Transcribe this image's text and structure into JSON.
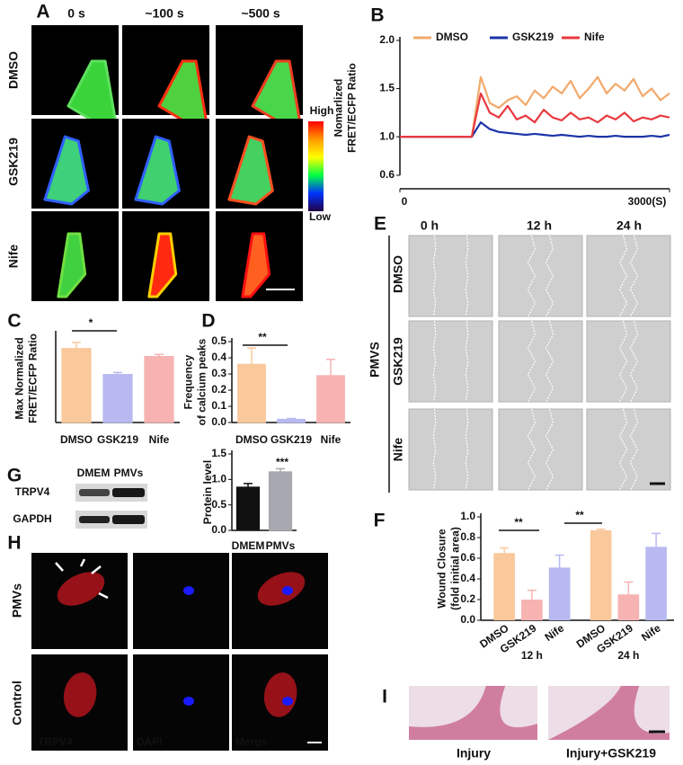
{
  "panels": {
    "A": {
      "letter": "A",
      "columns": [
        "0 s",
        "~100 s",
        "~500 s"
      ],
      "rows": [
        "DMSO",
        "GSK219",
        "Nife"
      ],
      "colorbar_high": "High",
      "colorbar_low": "Low"
    },
    "E": {
      "letter": "E",
      "columns": [
        "0 h",
        "12 h",
        "24 h"
      ],
      "rows": [
        "DMSO",
        "GSK219",
        "Nife"
      ],
      "group": "PMVS"
    },
    "G": {
      "letter": "G",
      "lanes": [
        "DMEM",
        "PMVs"
      ],
      "blots": [
        "TRPV4",
        "GAPDH"
      ]
    },
    "H": {
      "letter": "H",
      "rows": [
        "PMVs",
        "Control"
      ],
      "channels": [
        "TRPV4",
        "DAPI",
        "Merge"
      ]
    },
    "I": {
      "letter": "I",
      "captions": [
        "Injury",
        "Injury+GSK219"
      ]
    }
  },
  "chart_data": [
    {
      "type": "line",
      "label": "B",
      "ylabel": [
        "Nomarlized",
        "FRET/ECFP Ratio"
      ],
      "x": [
        0,
        100,
        200,
        300,
        400,
        500,
        600,
        700,
        800,
        900,
        1000,
        1100,
        1200,
        1300,
        1400,
        1500,
        1600,
        1700,
        1800,
        1900,
        2000,
        2100,
        2200,
        2300,
        2400,
        2500,
        2600,
        2700,
        2800,
        2900,
        3000
      ],
      "xlim": [
        0,
        3000
      ],
      "xticks": [
        0,
        {
          "value": 3000,
          "label": "3000(S)"
        }
      ],
      "ylim": [
        0.6,
        2.0
      ],
      "yticks": [
        0.6,
        {
          "value": 1.0,
          "label": "1.0"
        },
        1.5,
        {
          "value": 2.0,
          "label": "2.0"
        }
      ],
      "series": [
        {
          "name": "DMSO",
          "color": "#f2a96b",
          "values": [
            1,
            1,
            1,
            1,
            1,
            1,
            1,
            1,
            1,
            1.62,
            1.35,
            1.3,
            1.38,
            1.42,
            1.33,
            1.48,
            1.4,
            1.52,
            1.45,
            1.58,
            1.4,
            1.5,
            1.62,
            1.45,
            1.55,
            1.48,
            1.6,
            1.42,
            1.5,
            1.38,
            1.45
          ]
        },
        {
          "name": "GSK219",
          "color": "#1c34a8",
          "values": [
            1,
            1,
            1,
            1,
            1,
            1,
            1,
            1,
            1,
            1.15,
            1.08,
            1.05,
            1.04,
            1.03,
            1.02,
            1.03,
            1.02,
            1.01,
            1.02,
            1.01,
            1.0,
            1.01,
            1.0,
            1.0,
            1.01,
            1.0,
            1.0,
            1.0,
            1.01,
            1.0,
            1.02
          ]
        },
        {
          "name": "Nife",
          "color": "#e8393f",
          "values": [
            1,
            1,
            1,
            1,
            1,
            1,
            1,
            1,
            1,
            1.45,
            1.25,
            1.2,
            1.32,
            1.18,
            1.22,
            1.15,
            1.28,
            1.2,
            1.17,
            1.25,
            1.18,
            1.2,
            1.15,
            1.22,
            1.18,
            1.25,
            1.16,
            1.2,
            1.18,
            1.22,
            1.2
          ]
        }
      ]
    },
    {
      "type": "bar",
      "label": "C",
      "ylabel": [
        "Max Normalized",
        "FRET/ECFP Ratio"
      ],
      "categories": [
        "DMSO",
        "GSK219",
        "Nife"
      ],
      "values": [
        1.85,
        1.2,
        1.65
      ],
      "errors": [
        0.15,
        0.05,
        0.05
      ],
      "colors": [
        "#f9c89b",
        "#b7b9f0",
        "#f7b2b2"
      ],
      "ylim": [
        0,
        2.2
      ],
      "significance": [
        "*"
      ]
    },
    {
      "type": "bar",
      "label": "D",
      "ylabel": [
        "Frequency",
        "of calcium peaks"
      ],
      "categories": [
        "DMSO",
        "GSK219",
        "Nife"
      ],
      "values": [
        0.36,
        0.02,
        0.29
      ],
      "errors": [
        0.1,
        0.005,
        0.1
      ],
      "colors": [
        "#f9c89b",
        "#b7b9f0",
        "#f7b2b2"
      ],
      "ylim": [
        0,
        0.5
      ],
      "yticks": [
        {
          "value": 0,
          "label": "0.0"
        },
        0.1,
        0.2,
        0.3,
        0.4,
        0.5
      ],
      "significance": [
        "**"
      ]
    },
    {
      "type": "bar",
      "label": "",
      "ylabel": [
        "Protein level"
      ],
      "categories": [
        "DMEM",
        "PMVs"
      ],
      "values": [
        0.85,
        1.15
      ],
      "errors": [
        0.07,
        0.06
      ],
      "colors": [
        "#111111",
        "#a8a8b0"
      ],
      "ylim": [
        0,
        1.5
      ],
      "yticks": [
        {
          "value": 0,
          "label": "0.0"
        },
        0.5,
        {
          "value": 1,
          "label": "1.0"
        },
        1.5
      ],
      "significance": [
        "***"
      ]
    },
    {
      "type": "grouped_bar",
      "label": "F",
      "ylabel": [
        "Wound Closure",
        "(fold initial area)"
      ],
      "categories": [
        "12 h",
        "24 h"
      ],
      "ylim": [
        0,
        1.0
      ],
      "yticks": [
        {
          "value": 0,
          "label": "0.0"
        },
        0.2,
        0.4,
        0.6,
        0.8,
        {
          "value": 1,
          "label": "1.0"
        }
      ],
      "series": [
        {
          "name": "DMSO",
          "color": "#f9c89b",
          "values": [
            0.65,
            0.87
          ],
          "errors": [
            0.05,
            0.01
          ]
        },
        {
          "name": "GSK219",
          "color": "#f7b2b2",
          "values": [
            0.2,
            0.25
          ],
          "errors": [
            0.09,
            0.12
          ]
        },
        {
          "name": "Nife",
          "color": "#b7b9f0",
          "values": [
            0.51,
            0.71
          ],
          "errors": [
            0.12,
            0.13
          ]
        }
      ],
      "significance": [
        "**",
        "**"
      ]
    }
  ]
}
